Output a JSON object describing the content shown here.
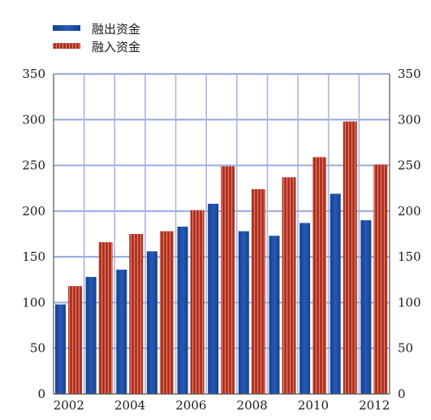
{
  "legend": [
    {
      "label": "融出资金",
      "swatch_color": "#1f4ea3"
    },
    {
      "label": "融入资金",
      "swatch_color": "#c0392b"
    }
  ],
  "chart_data": {
    "type": "bar",
    "categories": [
      "2002",
      "2003",
      "2004",
      "2005",
      "2006",
      "2007",
      "2008",
      "2009",
      "2010",
      "2011",
      "2012"
    ],
    "x_tick_labels": [
      "2002",
      "2004",
      "2006",
      "2008",
      "2010",
      "2012"
    ],
    "series": [
      {
        "name": "融出资金",
        "color": "#1f4ea3",
        "values": [
          98,
          128,
          136,
          156,
          183,
          208,
          178,
          173,
          187,
          219,
          190
        ]
      },
      {
        "name": "融入资金",
        "color": "#c0392b",
        "values": [
          118,
          166,
          175,
          178,
          201,
          249,
          224,
          237,
          259,
          298,
          251
        ]
      }
    ],
    "ylim": [
      0,
      350
    ],
    "y_ticks": [
      0,
      50,
      100,
      150,
      200,
      250,
      300,
      350
    ],
    "y_axis_both_sides": true,
    "grid": true,
    "legend_position": "top-left",
    "title": "",
    "xlabel": "",
    "ylabel": ""
  }
}
